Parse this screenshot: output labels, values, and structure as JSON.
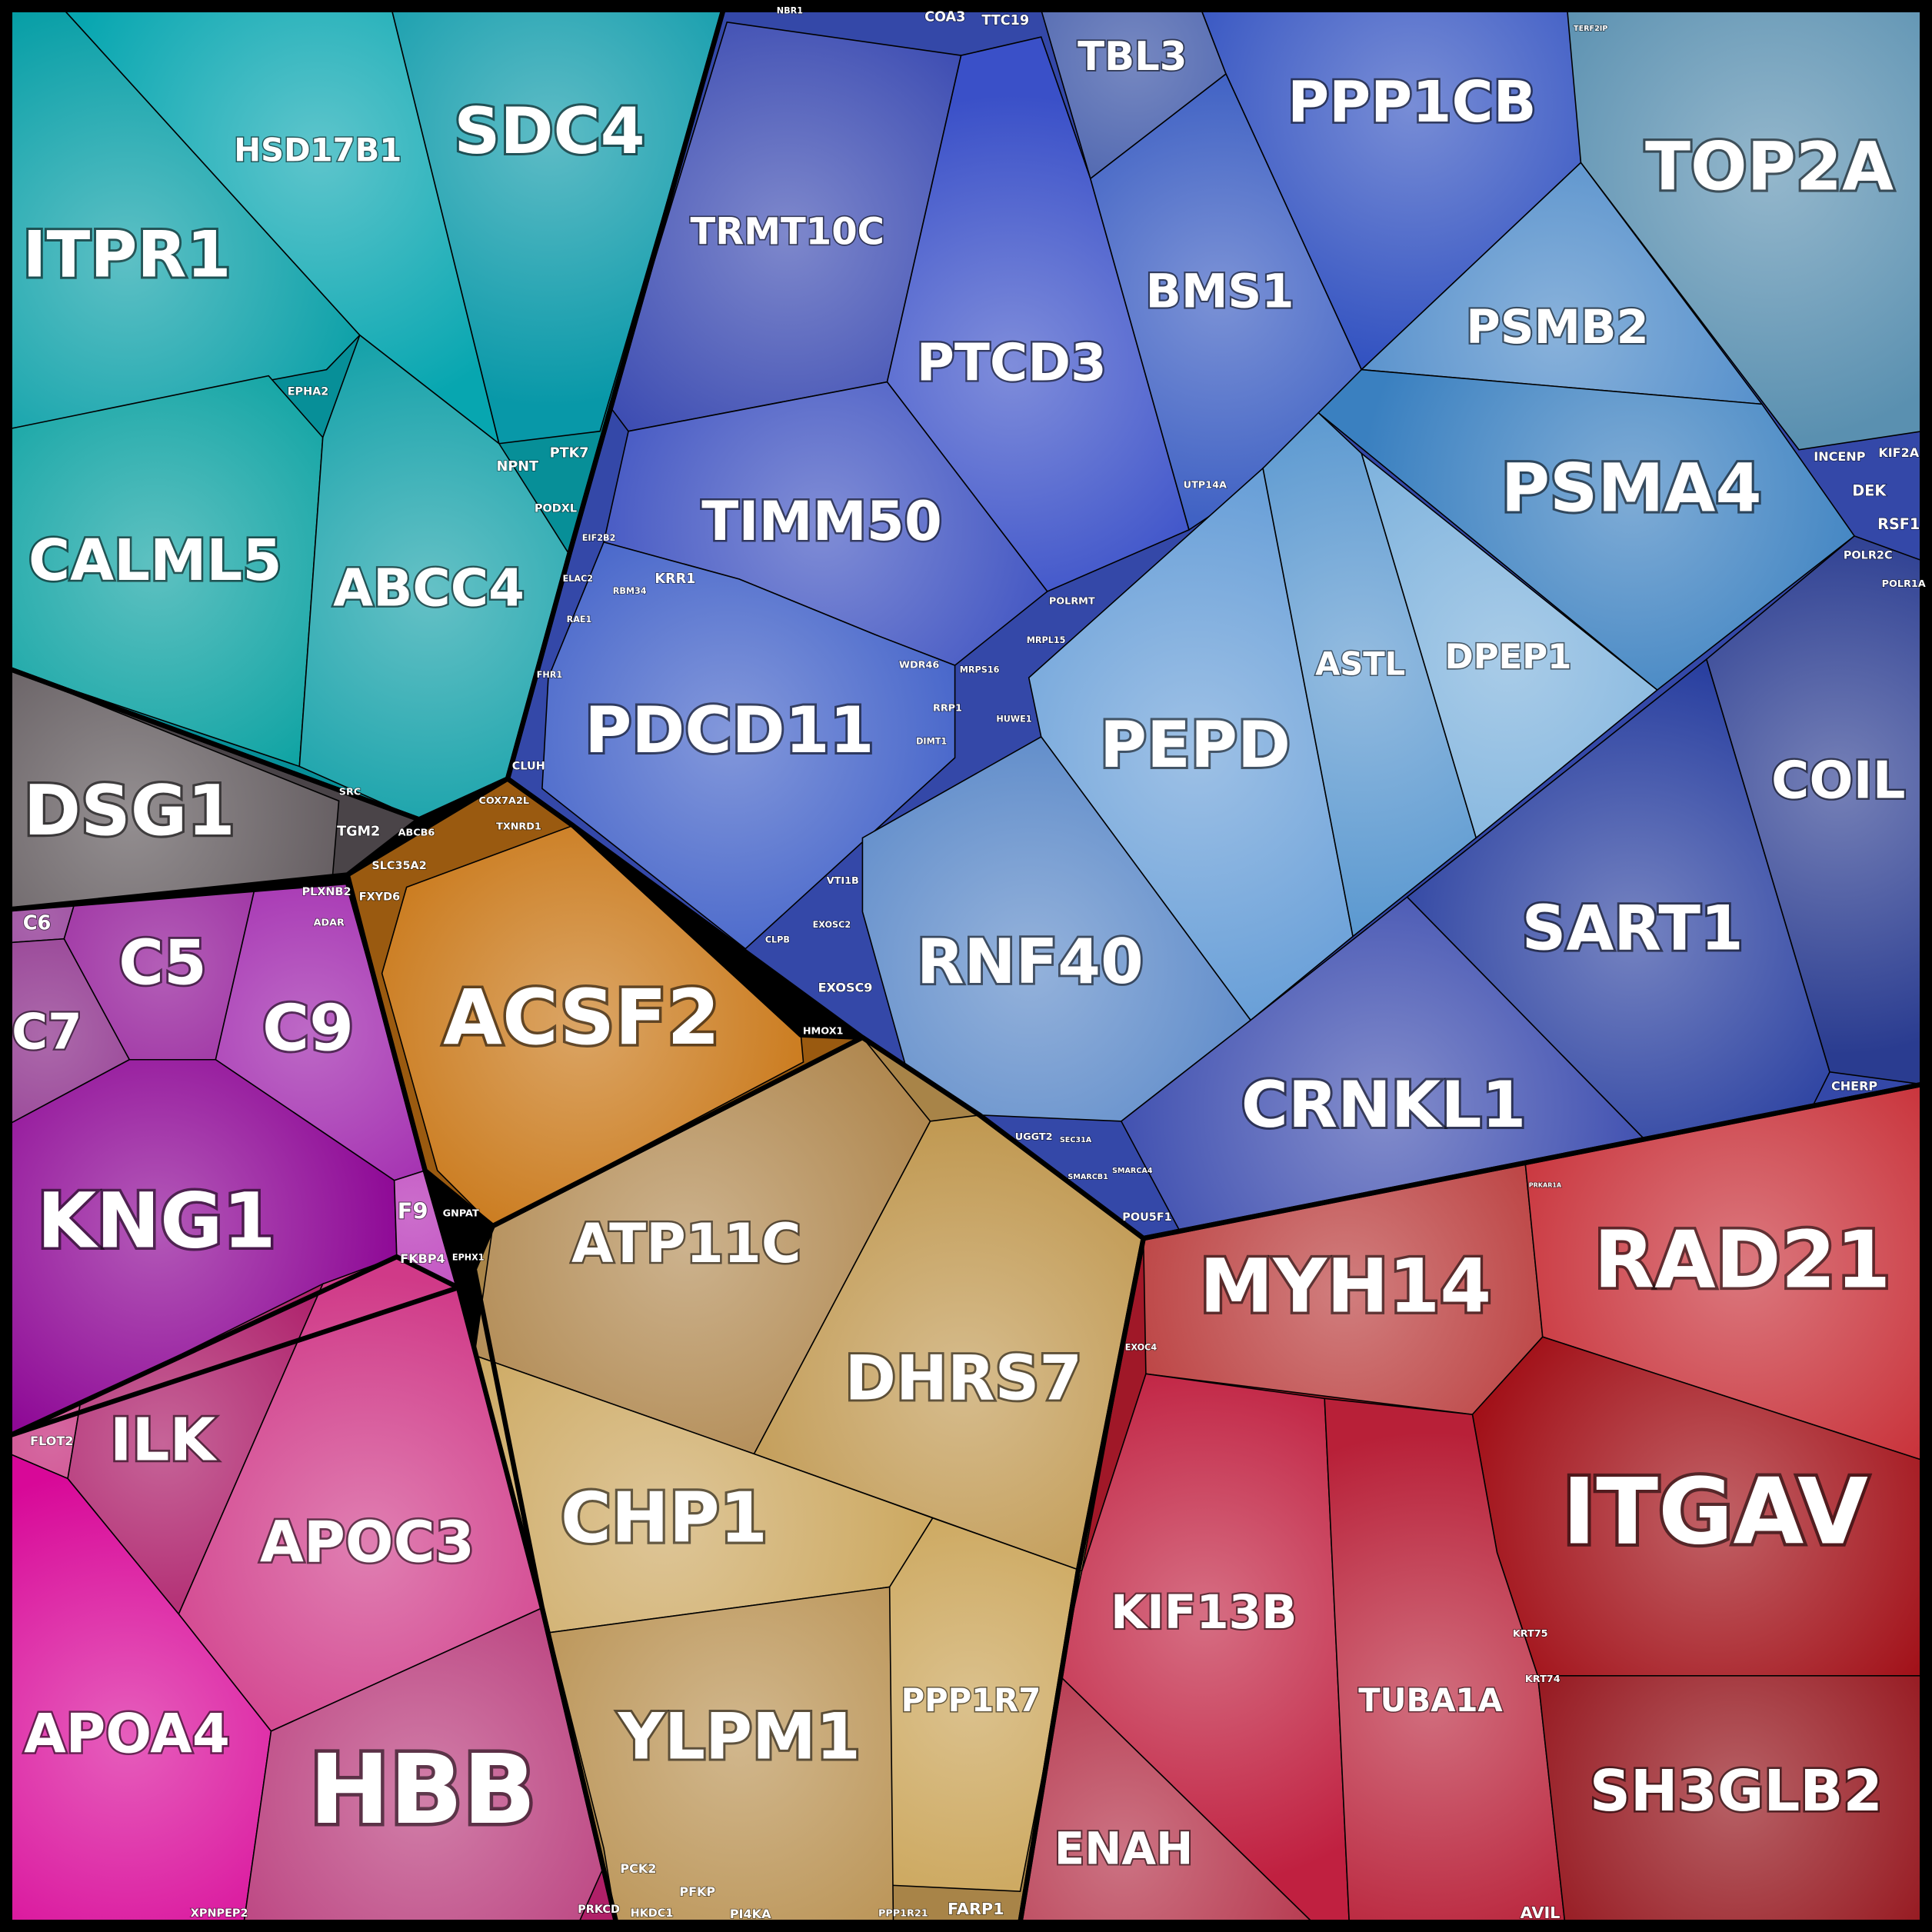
{
  "labels": [
    "ITPR1",
    "HSD17B1",
    "SDC4",
    "CALML5",
    "ABCC4",
    "DSG1",
    "C6",
    "C5",
    "C7",
    "C9",
    "KNG1",
    "F9",
    "FLOT2",
    "ILK",
    "APOC3",
    "APOA4",
    "HBB",
    "ACSF2",
    "ATP11C",
    "DHRS7",
    "CHP1",
    "PPP1R7",
    "YLPM1",
    "TRMT10C",
    "PTCD3",
    "TBL3",
    "PPP1CB",
    "BMS1",
    "TIMM50",
    "PDCD11",
    "TOP2A",
    "PSMB2",
    "PSMA4",
    "PEPD",
    "ASTL",
    "DPEP1",
    "RNF40",
    "SART1",
    "COIL",
    "CRNKL1",
    "MYH14",
    "RAD21",
    "ITGAV",
    "KIF13B",
    "TUBA1A",
    "ENAH",
    "SH3GLB2",
    "EPHA2",
    "NPNT",
    "PTK7",
    "PODXL",
    "SRC",
    "TGM2",
    "PLXNB2",
    "ADAR",
    "FKBP4",
    "XPNPEP2",
    "PRKCD",
    "COX7A2L",
    "ABCB6",
    "SLC35A2",
    "FXYD6",
    "TXNRD1",
    "HMOX1",
    "GNPAT",
    "EPHX1",
    "PCK2",
    "PFKP",
    "HKDC1",
    "PI4KA",
    "PPP1R21",
    "FARP1",
    "NBR1",
    "COA3",
    "TTC19",
    "EIF2B2",
    "ELAC2",
    "RBM34",
    "KRR1",
    "RAE1",
    "FHR1",
    "CLUH",
    "UTP14A",
    "POLRMT",
    "MRPL15",
    "WDR46",
    "MRPS16",
    "RRP1",
    "DIMT1",
    "HUWE1",
    "VTI1B",
    "EXOSC2",
    "CLPB",
    "EXOSC9",
    "UGGT2",
    "SEC31A",
    "SMARCB1",
    "SMARCA4",
    "POU5F1",
    "TERF2IP",
    "INCENP",
    "KIF2A",
    "DEK",
    "RSF1",
    "POLR2C",
    "POLR1A",
    "CHERP",
    "PRKAR1A",
    "EXOC4",
    "KRT75",
    "KRT74",
    "AVIL"
  ]
}
